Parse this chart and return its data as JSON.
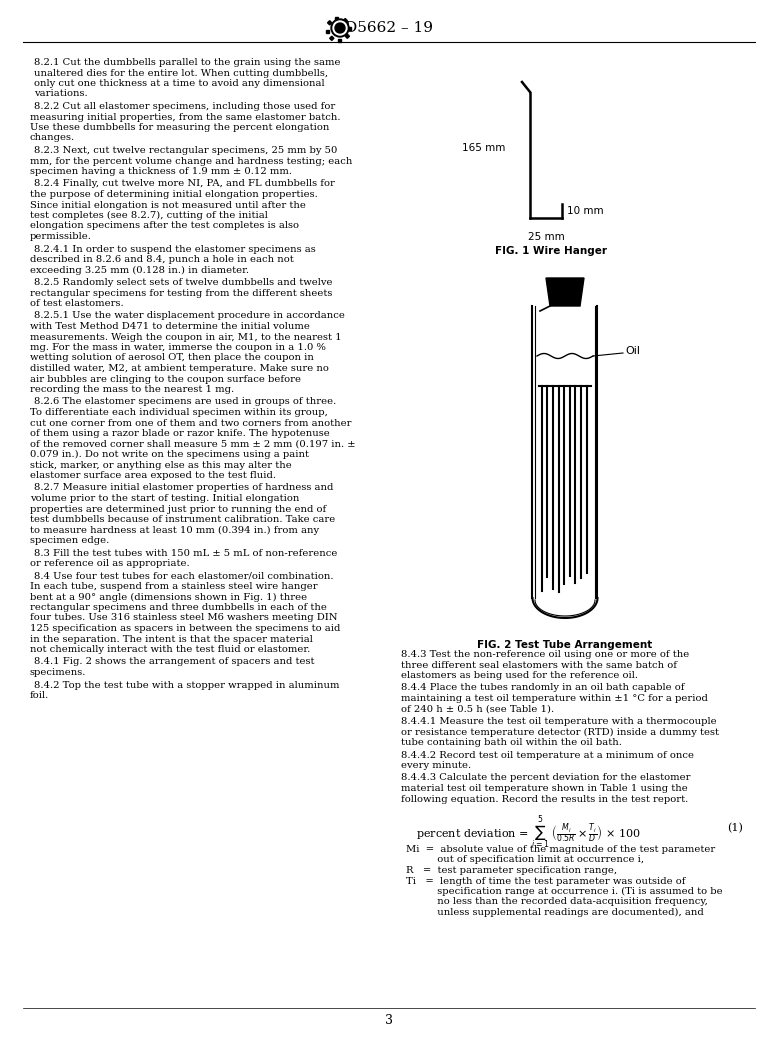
{
  "page_bg": "#ffffff",
  "header_text": "D5662 – 19",
  "page_number": "3",
  "left_column_text": [
    {
      "indent": true,
      "text": "8.2.1  Cut the dumbbells parallel to the grain using the same unaltered dies for the entire lot. When cutting dumbbells, only cut one thickness at a time to avoid any dimensional variations."
    },
    {
      "indent": false,
      "text": "8.2.2  Cut all elastomer specimens, including those used for measuring initial properties, from the same elastomer batch. Use these dumbbells for measuring the percent elongation changes."
    },
    {
      "indent": false,
      "text": "8.2.3  Next, cut twelve rectangular specimens, 25 mm by 50 mm, for the percent volume change and hardness testing; each specimen having a thickness of 1.9 mm ± 0.12 mm."
    },
    {
      "indent": false,
      "text": "8.2.4  Finally, cut twelve more NI, PA, and FL dumbbells for the purpose of determining initial elongation properties. Since initial elongation is not measured until after the test completes (see 8.2.7), cutting of the initial elongation specimens after the test completes is also permissible."
    },
    {
      "indent": false,
      "text": "8.2.4.1  In order to suspend the elastomer specimens as described in 8.2.6 and 8.4, punch a hole in each not exceeding 3.25 mm (0.128 in.) in diameter."
    },
    {
      "indent": false,
      "text": "8.2.5  Randomly select sets of twelve dumbbells and twelve rectangular specimens for testing from the different sheets of test elastomers."
    },
    {
      "indent": false,
      "text": "8.2.5.1  Use the water displacement procedure in accordance with Test Method D471 to determine the initial volume measurements. Weigh the coupon in air, M1, to the nearest 1 mg. For the mass in water, immerse the coupon in a 1.0 % wetting solution of aerosol OT, then place the coupon in distilled water, M2, at ambient temperature. Make sure no air bubbles are clinging to the coupon surface before recording the mass to the nearest 1 mg."
    },
    {
      "indent": false,
      "text": "8.2.6  The elastomer specimens are used in groups of three. To differentiate each individual specimen within its group, cut one corner from one of them and two corners from another of them using a razor blade or razor knife. The hypotenuse of the removed corner shall measure 5 mm ± 2 mm (0.197 in. ± 0.079 in.). Do not write on the specimens using a paint stick, marker, or anything else as this may alter the elastomer surface area exposed to the test fluid."
    },
    {
      "indent": false,
      "text": "8.2.7  Measure initial elastomer properties of hardness and volume prior to the start of testing. Initial elongation properties are determined just prior to running the end of test dumbbells because of instrument calibration. Take care to measure hardness at least 10 mm (0.394 in.) from any specimen edge."
    },
    {
      "indent": false,
      "text": "8.3  Fill the test tubes with 150 mL ± 5 mL of non-reference or reference oil as appropriate."
    },
    {
      "indent": false,
      "text": "8.4  Use four test tubes for each elastomer/oil combination. In each tube, suspend from a stainless steel wire hanger bent at a 90° angle (dimensions shown in Fig. 1) three rectangular specimens and three dumbbells in each of the four tubes. Use 316 stainless steel M6 washers meeting DIN 125 specification as spacers in between the specimens to aid in the separation. The intent is that the spacer material not chemically interact with the test fluid or elastomer."
    },
    {
      "indent": false,
      "text": "8.4.1  Fig. 2 shows the arrangement of spacers and test specimens."
    },
    {
      "indent": false,
      "text": "8.4.2  Top the test tube with a stopper wrapped in aluminum foil."
    }
  ],
  "right_column_text": [
    {
      "indent": false,
      "text": "8.4.3  Test the non-reference oil using one or more of the three different seal elastomers with the same batch of elastomers as being used for the reference oil."
    },
    {
      "indent": false,
      "text": "8.4.4  Place the tubes randomly in an oil bath capable of maintaining a test oil temperature within ±1 °C for a period of 240 h ± 0.5 h (see Table 1)."
    },
    {
      "indent": false,
      "text": "8.4.4.1  Measure the test oil temperature with a thermocouple or resistance temperature detector (RTD) inside a dummy test tube containing bath oil within the oil bath."
    },
    {
      "indent": false,
      "text": "8.4.4.2  Record test oil temperature at a minimum of once every minute."
    },
    {
      "indent": false,
      "text": "8.4.4.3  Calculate the percent deviation for the elastomer material test oil temperature shown in Table 1 using the following equation. Record the results in the test report."
    }
  ],
  "fig1_label": "FIG. 1 Wire Hanger",
  "fig2_label": "FIG. 2 Test Tube Arrangement",
  "dim_165": "165 mm",
  "dim_25": "25 mm",
  "dim_10": "10 mm",
  "formula_text": "percent deviation = Σ  × 100",
  "formula_detail": "Mi / (0.5R) × Ti/D",
  "eq_number": "(1)",
  "legend": [
    "Mi  =  absolute value of the magnitude of the test parameter",
    "          out of specification limit at occurrence i,",
    "R   =  test parameter specification range,",
    "Ti   =  length of time the test parameter was outside of",
    "          specification range at occurrence i. (Ti is assumed to be",
    "          no less than the recorded data-acquisition frequency,",
    "          unless supplemental readings are documented), and"
  ]
}
